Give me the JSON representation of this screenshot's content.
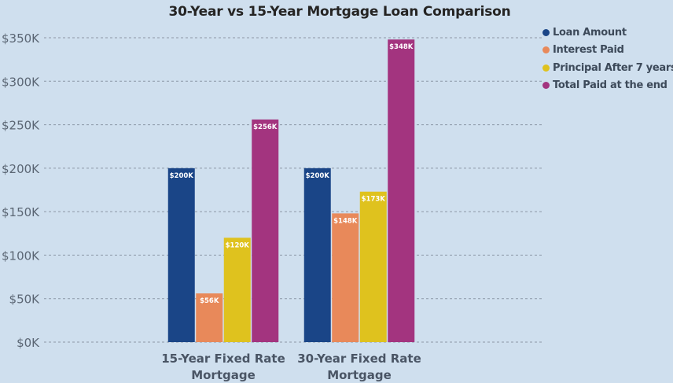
{
  "chart_data": {
    "type": "bar",
    "title": "30-Year vs 15-Year Mortgage Loan Comparison",
    "categories": [
      "15-Year Fixed Rate Mortgage",
      "30-Year Fixed Rate Mortgage"
    ],
    "category_lines": [
      [
        "15-Year Fixed Rate",
        "Mortgage"
      ],
      [
        "30-Year Fixed Rate",
        "Mortgage"
      ]
    ],
    "series": [
      {
        "name": "Loan Amount",
        "color": "#1a4587",
        "values": [
          200,
          200
        ],
        "labels": [
          "$200K",
          "$200K"
        ]
      },
      {
        "name": "Interest Paid",
        "color": "#e8895a",
        "values": [
          56,
          148
        ],
        "labels": [
          "$56K",
          "$148K"
        ]
      },
      {
        "name": "Principal After 7 years",
        "color": "#dfc21e",
        "values": [
          120,
          173
        ],
        "labels": [
          "$120K",
          "$173K"
        ]
      },
      {
        "name": "Total Paid at the end",
        "color": "#a3347f",
        "values": [
          256,
          348
        ],
        "labels": [
          "$256K",
          "$348K"
        ]
      }
    ],
    "ylim": [
      0,
      350
    ],
    "yticks": [
      0,
      50,
      100,
      150,
      200,
      250,
      300,
      350
    ],
    "ytick_labels": [
      "$0K",
      "$50K",
      "$100K",
      "$150K",
      "$200K",
      "$250K",
      "$300K",
      "$350K"
    ],
    "grid": true,
    "legend_position": "top-right"
  }
}
